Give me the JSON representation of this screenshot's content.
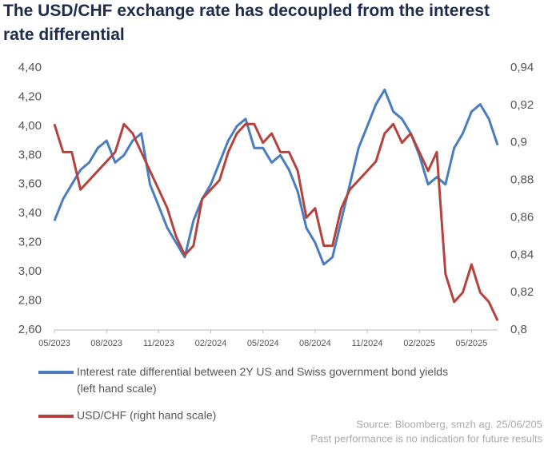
{
  "chart_data": {
    "type": "line",
    "title": "The USD/CHF exchange rate has decoupled from the interest rate differential",
    "categories": [
      "05/2023",
      null,
      null,
      null,
      null,
      null,
      "08/2023",
      null,
      null,
      null,
      null,
      null,
      "11/2023",
      null,
      null,
      null,
      null,
      null,
      "02/2024",
      null,
      null,
      null,
      null,
      null,
      "05/2024",
      null,
      null,
      null,
      null,
      null,
      "08/2024",
      null,
      null,
      null,
      null,
      null,
      "11/2024",
      null,
      null,
      null,
      null,
      null,
      "02/2025",
      null,
      null,
      null,
      null,
      null,
      "05/2025",
      null,
      null,
      null
    ],
    "series": [
      {
        "name": "Interest rate differential between 2Y US and Swiss government bond yields (left hand scale)",
        "color": "#4a7cc0",
        "axis": "y",
        "values": [
          3.35,
          3.5,
          3.6,
          3.7,
          3.75,
          3.85,
          3.9,
          3.75,
          3.8,
          3.9,
          3.95,
          3.6,
          3.45,
          3.3,
          3.2,
          3.1,
          3.35,
          3.5,
          3.6,
          3.75,
          3.9,
          4.0,
          4.05,
          3.85,
          3.85,
          3.75,
          3.8,
          3.7,
          3.55,
          3.3,
          3.2,
          3.05,
          3.1,
          3.35,
          3.6,
          3.85,
          4.0,
          4.15,
          4.25,
          4.1,
          4.05,
          3.95,
          3.8,
          3.6,
          3.65,
          3.6,
          3.85,
          3.95,
          4.1,
          4.15,
          4.05,
          3.87
        ]
      },
      {
        "name": "USD/CHF (right hand scale)",
        "color": "#b5423c",
        "axis": "y2",
        "values": [
          0.91,
          0.895,
          0.895,
          0.875,
          0.88,
          0.885,
          0.89,
          0.895,
          0.91,
          0.905,
          0.895,
          0.885,
          0.875,
          0.865,
          0.85,
          0.84,
          0.845,
          0.87,
          0.875,
          0.88,
          0.895,
          0.905,
          0.91,
          0.91,
          0.9,
          0.905,
          0.895,
          0.895,
          0.885,
          0.86,
          0.865,
          0.845,
          0.845,
          0.865,
          0.875,
          0.88,
          0.885,
          0.89,
          0.905,
          0.91,
          0.9,
          0.905,
          0.895,
          0.885,
          0.895,
          0.83,
          0.815,
          0.82,
          0.835,
          0.82,
          0.815,
          0.805
        ]
      }
    ],
    "ylim": [
      2.6,
      4.4
    ],
    "yticks": [
      {
        "value": 2.6,
        "label": "2,60"
      },
      {
        "value": 2.8,
        "label": "2,80"
      },
      {
        "value": 3.0,
        "label": "3,00"
      },
      {
        "value": 3.2,
        "label": "3,20"
      },
      {
        "value": 3.4,
        "label": "3,40"
      },
      {
        "value": 3.6,
        "label": "3,60"
      },
      {
        "value": 3.8,
        "label": "3,80"
      },
      {
        "value": 4.0,
        "label": "4,00"
      },
      {
        "value": 4.2,
        "label": "4,20"
      },
      {
        "value": 4.4,
        "label": "4,40"
      }
    ],
    "y2lim": [
      0.8,
      0.94
    ],
    "y2ticks": [
      {
        "value": 0.8,
        "label": "0,8"
      },
      {
        "value": 0.82,
        "label": "0,82"
      },
      {
        "value": 0.84,
        "label": "0,84"
      },
      {
        "value": 0.86,
        "label": "0,86"
      },
      {
        "value": 0.88,
        "label": "0,88"
      },
      {
        "value": 0.9,
        "label": "0,9"
      },
      {
        "value": 0.92,
        "label": "0,92"
      },
      {
        "value": 0.94,
        "label": "0,94"
      }
    ],
    "source": "Source: Bloomberg, smzh ag. 25/06/205",
    "note": "Past performance is no indication for future results"
  }
}
